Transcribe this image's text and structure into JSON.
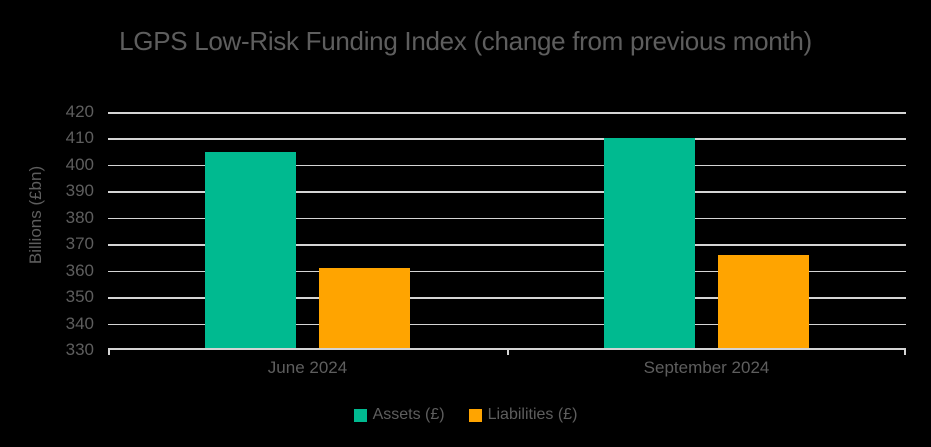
{
  "chart_data": {
    "type": "bar",
    "title": "LGPS Low-Risk Funding Index (change from previous month)",
    "ylabel": "Billions (£bn)",
    "xlabel": "",
    "categories": [
      "June 2024",
      "September 2024"
    ],
    "series": [
      {
        "name": "Assets (£)",
        "color": "#00BA90",
        "values": [
          405,
          410
        ]
      },
      {
        "name": "Liabilities (£)",
        "color": "#FFA400",
        "values": [
          361,
          366
        ]
      }
    ],
    "ylim": [
      330,
      420
    ],
    "ytick_step": 10,
    "yticks": [
      420,
      410,
      400,
      390,
      380,
      370,
      360,
      350,
      340,
      330
    ],
    "grid": true,
    "legend_position": "bottom",
    "colors": {
      "background": "#000000",
      "grid": "#D4D4D4",
      "axis": "#D4D4D4",
      "text": "#5E5E5E"
    }
  }
}
